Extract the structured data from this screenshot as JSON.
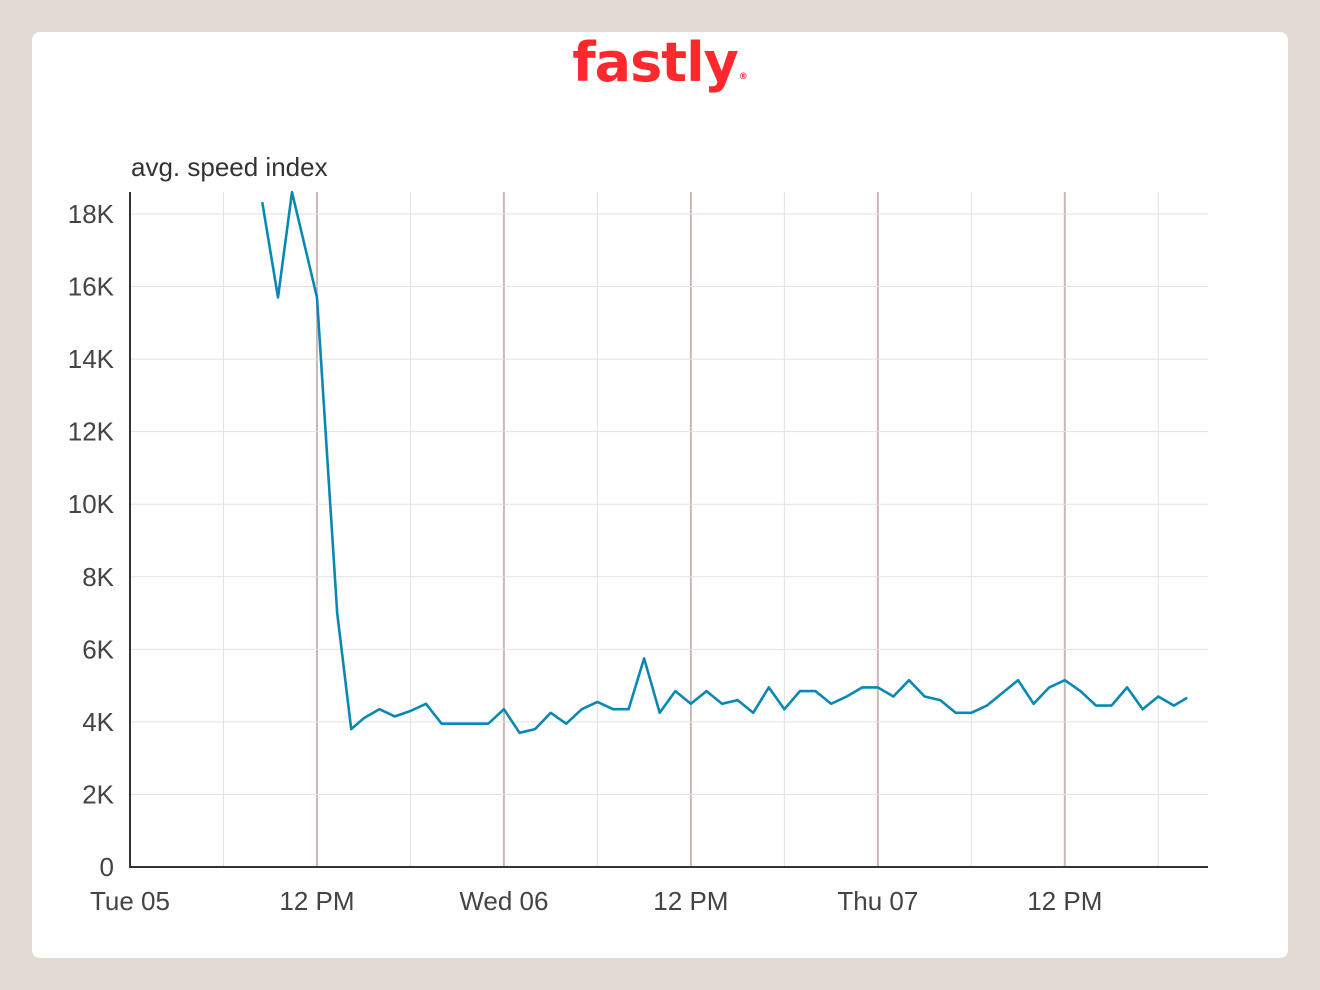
{
  "brand": {
    "logo_text": "fastly",
    "logo_mark": "®",
    "color": "#ff282d"
  },
  "colors": {
    "line": "#0a88b4",
    "grid_minor": "#e2e2e2",
    "grid_major": "#c9b7b4",
    "axis": "#333333"
  },
  "chart_data": {
    "type": "line",
    "title": "",
    "xlabel": "",
    "ylabel": "avg. speed index",
    "ylim": [
      0,
      18600
    ],
    "y_ticks": [
      0,
      2000,
      4000,
      6000,
      8000,
      10000,
      12000,
      14000,
      16000,
      18000
    ],
    "y_tick_labels": [
      "0",
      "2K",
      "4K",
      "6K",
      "8K",
      "10K",
      "12K",
      "14K",
      "16K",
      "18K"
    ],
    "x_unit": "hours since Tue 05 00:00",
    "xlim": [
      0,
      70
    ],
    "x_ticks": [
      {
        "x": 0,
        "label": "Tue 05",
        "major": false
      },
      {
        "x": 6,
        "label": "",
        "major": false
      },
      {
        "x": 12,
        "label": "12 PM",
        "major": true
      },
      {
        "x": 18,
        "label": "",
        "major": false
      },
      {
        "x": 24,
        "label": "Wed 06",
        "major": true
      },
      {
        "x": 30,
        "label": "",
        "major": false
      },
      {
        "x": 36,
        "label": "12 PM",
        "major": true
      },
      {
        "x": 42,
        "label": "",
        "major": false
      },
      {
        "x": 48,
        "label": "Thu 07",
        "major": true
      },
      {
        "x": 54,
        "label": "",
        "major": false
      },
      {
        "x": 60,
        "label": "12 PM",
        "major": true
      },
      {
        "x": 66,
        "label": "",
        "major": false
      }
    ],
    "grid": true,
    "series": [
      {
        "x": [
          8.5,
          9.5,
          10.4,
          12,
          13.3,
          14.2,
          15,
          16,
          17,
          18,
          19,
          20,
          21,
          22,
          23,
          24,
          25,
          26,
          27,
          28,
          29,
          30,
          31,
          32,
          33,
          34,
          35,
          36,
          37,
          38,
          39,
          40,
          41,
          42,
          43,
          44,
          45,
          46,
          47,
          48,
          49,
          50,
          51,
          52,
          53,
          54,
          55,
          56,
          57,
          58,
          59,
          60,
          61,
          62,
          63,
          64,
          65,
          66,
          67,
          67.8
        ],
        "y": [
          18300,
          15700,
          18600,
          15700,
          7000,
          3800,
          4100,
          4350,
          4150,
          4300,
          4500,
          3950,
          3950,
          3950,
          3950,
          4350,
          3700,
          3800,
          4250,
          3950,
          4350,
          4550,
          4350,
          4350,
          5750,
          4250,
          4850,
          4500,
          4850,
          4500,
          4600,
          4250,
          4950,
          4350,
          4850,
          4850,
          4500,
          4700,
          4950,
          4950,
          4700,
          5150,
          4700,
          4600,
          4250,
          4250,
          4450,
          4800,
          5150,
          4500,
          4950,
          5150,
          4850,
          4450,
          4450,
          4950,
          4350,
          4700,
          4450,
          4650
        ]
      }
    ]
  }
}
